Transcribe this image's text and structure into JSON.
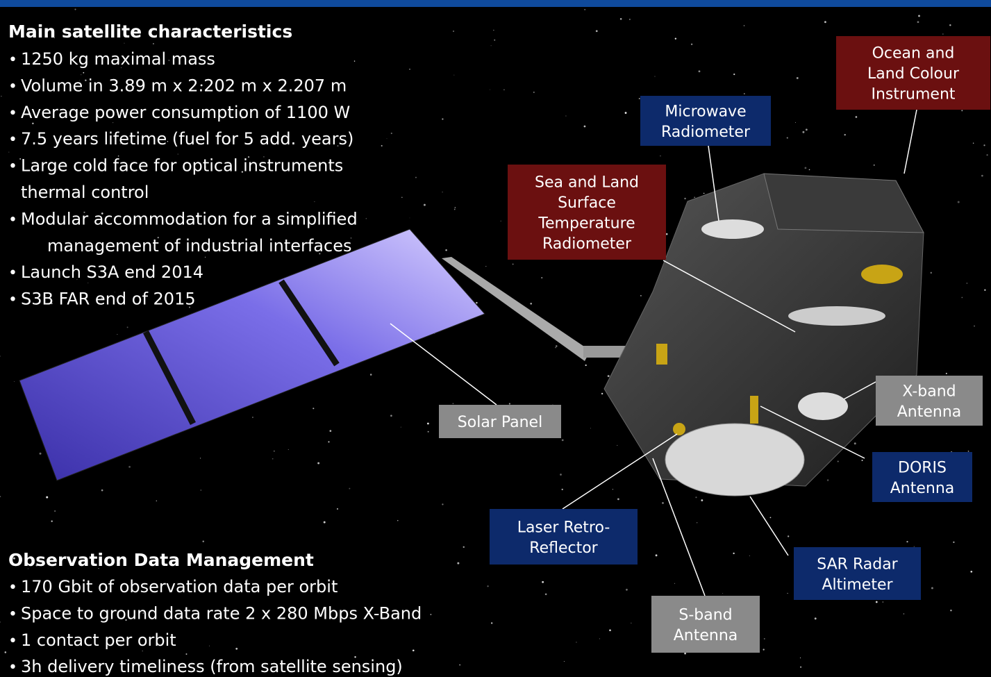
{
  "characteristics": {
    "title": "Main satellite characteristics",
    "items": [
      {
        "lines": [
          "1250 kg maximal mass"
        ],
        "color": "#ffffff"
      },
      {
        "lines": [
          "Volume in 3.89 m x 2.202 m x 2.207 m"
        ],
        "color": "#ffffff"
      },
      {
        "lines": [
          "Average power consumption of 1100 W"
        ],
        "color": "#ffffff"
      },
      {
        "lines": [
          "7.5 years lifetime (fuel for 5 add. years)"
        ],
        "color": "#ffffff"
      },
      {
        "lines": [
          "Large cold face for optical instruments",
          "thermal control"
        ],
        "color": "#ffffff"
      },
      {
        "lines": [
          "Modular accommodation for a simplified",
          "management of industrial interfaces"
        ],
        "color": "#ffffff"
      },
      {
        "lines": [
          "Launch S3A end 2014"
        ],
        "color": "#ff1a1a"
      },
      {
        "lines": [
          "S3B FAR end of 2015"
        ],
        "color": "#ff1a1a"
      }
    ]
  },
  "data_management": {
    "title": "Observation Data Management",
    "items": [
      {
        "lines": [
          "170 Gbit of observation data per orbit"
        ],
        "color": "#ffffff"
      },
      {
        "lines": [
          "Space to ground data rate 2 x 280 Mbps X-Band"
        ],
        "color": "#ffffff"
      },
      {
        "lines": [
          "1 contact per orbit"
        ],
        "color": "#ffffff"
      },
      {
        "lines": [
          "3h delivery timeliness (from satellite sensing)"
        ],
        "color": "#ffffff"
      }
    ]
  },
  "labels": [
    {
      "lines": [
        "Ocean and",
        "Land Colour",
        "Instrument"
      ],
      "color": "#6b1010"
    },
    {
      "lines": [
        "Microwave",
        "Radiometer"
      ],
      "color": "#0d2a6b"
    },
    {
      "lines": [
        "Sea and Land",
        "Surface",
        "Temperature",
        "Radiometer"
      ],
      "color": "#6b1010"
    },
    {
      "lines": [
        "Solar Panel"
      ],
      "color": "#8a8a8a"
    },
    {
      "lines": [
        "X-band",
        "Antenna"
      ],
      "color": "#8a8a8a"
    },
    {
      "lines": [
        "DORIS",
        "Antenna"
      ],
      "color": "#0d2a6b"
    },
    {
      "lines": [
        "Laser Retro-",
        "Reflector"
      ],
      "color": "#0d2a6b"
    },
    {
      "lines": [
        "SAR Radar",
        "Altimeter"
      ],
      "color": "#0d2a6b"
    },
    {
      "lines": [
        "S-band",
        "Antenna"
      ],
      "color": "#8a8a8a"
    }
  ]
}
